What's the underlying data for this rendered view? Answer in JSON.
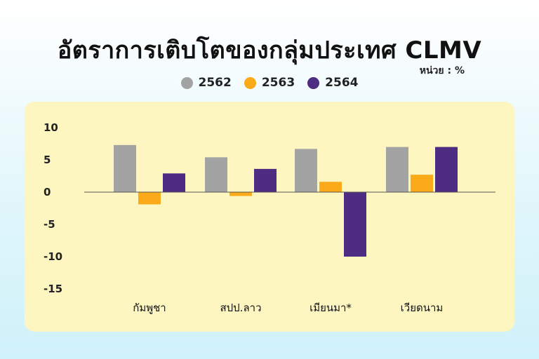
{
  "title": "อัตราการเติบโตของกลุ่มประเทศ CLMV",
  "unit_label": "หน่วย : %",
  "colors": {
    "2562": "#a3a3a3",
    "2563": "#fbaa19",
    "2564": "#4d2c82"
  },
  "legend": [
    {
      "label": "2562",
      "color": "#a3a3a3"
    },
    {
      "label": "2563",
      "color": "#fbaa19"
    },
    {
      "label": "2564",
      "color": "#4d2c82"
    }
  ],
  "chart_data": {
    "type": "bar",
    "title": "อัตราการเติบโตของกลุ่มประเทศ CLMV",
    "categories": [
      "กัมพูชา",
      "สปป.ลาว",
      "เมียนมา*",
      "เวียดนาม"
    ],
    "series": [
      {
        "name": "2562",
        "values": [
          7.3,
          5.4,
          6.7,
          7.0
        ]
      },
      {
        "name": "2563",
        "values": [
          -1.9,
          -0.6,
          1.6,
          2.7
        ]
      },
      {
        "name": "2564",
        "values": [
          2.9,
          3.6,
          -10.0,
          7.0
        ]
      }
    ],
    "yticks": [
      "10",
      "5",
      "0",
      "-5",
      "-10",
      "-15"
    ],
    "ylim": [
      -15,
      10
    ],
    "xlabel": "",
    "ylabel": "",
    "grid": false,
    "legend_position": "top"
  }
}
